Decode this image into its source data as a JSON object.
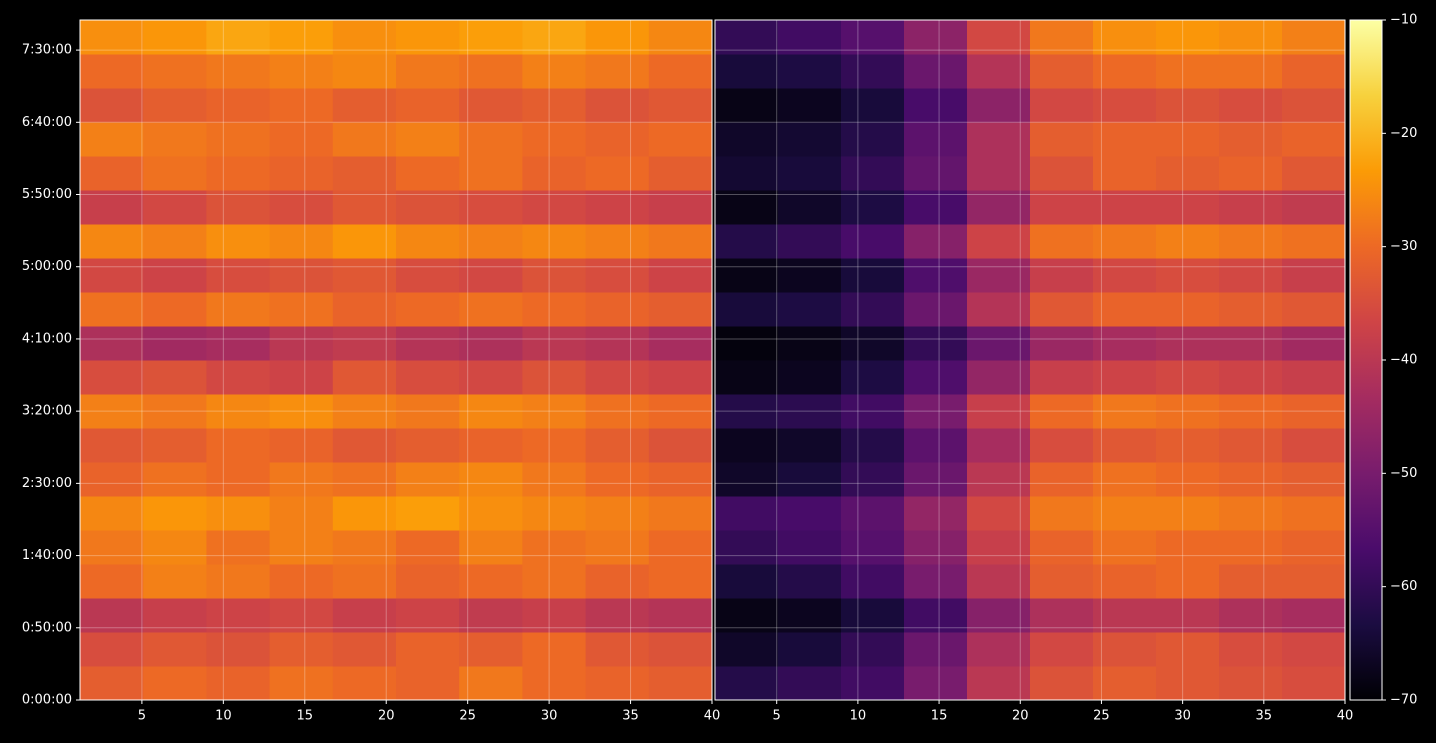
{
  "chart_data": {
    "type": "heatmap",
    "colormap": "inferno",
    "grid": true,
    "ylim": [
      0,
      28250
    ],
    "yticks": [
      {
        "value": 0,
        "label": "0:00:00"
      },
      {
        "value": 3000,
        "label": "0:50:00"
      },
      {
        "value": 6000,
        "label": "1:40:00"
      },
      {
        "value": 9000,
        "label": "2:30:00"
      },
      {
        "value": 12000,
        "label": "3:20:00"
      },
      {
        "value": 15000,
        "label": "4:10:00"
      },
      {
        "value": 18000,
        "label": "5:00:00"
      },
      {
        "value": 21000,
        "label": "5:50:00"
      },
      {
        "value": 24000,
        "label": "6:40:00"
      },
      {
        "value": 27000,
        "label": "7:30:00"
      }
    ],
    "zlim": [
      -70,
      -10
    ],
    "zticks": [
      {
        "value": -70,
        "label": "−70"
      },
      {
        "value": -60,
        "label": "−60"
      },
      {
        "value": -50,
        "label": "−50"
      },
      {
        "value": -40,
        "label": "−40"
      },
      {
        "value": -30,
        "label": "−30"
      },
      {
        "value": -20,
        "label": "−20"
      },
      {
        "value": -10,
        "label": "−10"
      }
    ],
    "panels": [
      {
        "xlim": [
          1.2,
          40
        ],
        "xticks": [
          5,
          10,
          15,
          20,
          25,
          30,
          35,
          40
        ],
        "values": [
          [
            -32,
            -30,
            -31,
            -29,
            -30,
            -31,
            -28,
            -30,
            -31,
            -32
          ],
          [
            -35,
            -33,
            -34,
            -32,
            -33,
            -31,
            -32,
            -30,
            -33,
            -34
          ],
          [
            -40,
            -38,
            -37,
            -36,
            -38,
            -37,
            -39,
            -38,
            -40,
            -41
          ],
          [
            -30,
            -27,
            -28,
            -30,
            -29,
            -31,
            -30,
            -29,
            -31,
            -30
          ],
          [
            -28,
            -26,
            -29,
            -27,
            -28,
            -30,
            -27,
            -29,
            -28,
            -30
          ],
          [
            -26,
            -24,
            -25,
            -27,
            -24,
            -23,
            -25,
            -26,
            -27,
            -28
          ],
          [
            -31,
            -29,
            -30,
            -28,
            -29,
            -27,
            -26,
            -28,
            -30,
            -31
          ],
          [
            -33,
            -32,
            -30,
            -31,
            -33,
            -32,
            -31,
            -30,
            -32,
            -34
          ],
          [
            -27,
            -28,
            -26,
            -25,
            -27,
            -28,
            -26,
            -27,
            -29,
            -30
          ],
          [
            -35,
            -34,
            -36,
            -37,
            -33,
            -35,
            -36,
            -34,
            -36,
            -37
          ],
          [
            -42,
            -44,
            -43,
            -40,
            -39,
            -41,
            -42,
            -40,
            -41,
            -43
          ],
          [
            -29,
            -30,
            -28,
            -29,
            -31,
            -30,
            -29,
            -30,
            -31,
            -32
          ],
          [
            -36,
            -37,
            -35,
            -34,
            -33,
            -35,
            -36,
            -34,
            -35,
            -37
          ],
          [
            -26,
            -27,
            -25,
            -26,
            -24,
            -26,
            -27,
            -26,
            -27,
            -28
          ],
          [
            -38,
            -36,
            -34,
            -35,
            -33,
            -34,
            -35,
            -36,
            -37,
            -38
          ],
          [
            -31,
            -29,
            -30,
            -31,
            -32,
            -30,
            -29,
            -31,
            -30,
            -32
          ],
          [
            -27,
            -28,
            -29,
            -30,
            -28,
            -27,
            -29,
            -30,
            -31,
            -30
          ],
          [
            -34,
            -32,
            -31,
            -30,
            -32,
            -31,
            -33,
            -32,
            -34,
            -33
          ],
          [
            -30,
            -29,
            -28,
            -27,
            -26,
            -28,
            -29,
            -27,
            -28,
            -30
          ],
          [
            -25,
            -24,
            -22,
            -23,
            -25,
            -24,
            -23,
            -22,
            -24,
            -26
          ]
        ]
      },
      {
        "xlim": [
          1.2,
          40
        ],
        "xticks": [
          5,
          10,
          15,
          20,
          25,
          30,
          35,
          40
        ],
        "values": [
          [
            -62,
            -60,
            -58,
            -50,
            -40,
            -34,
            -32,
            -33,
            -34,
            -35
          ],
          [
            -66,
            -64,
            -60,
            -52,
            -42,
            -36,
            -34,
            -33,
            -35,
            -36
          ],
          [
            -68,
            -67,
            -64,
            -58,
            -48,
            -42,
            -40,
            -40,
            -42,
            -43
          ],
          [
            -64,
            -62,
            -58,
            -50,
            -40,
            -32,
            -31,
            -30,
            -32,
            -32
          ],
          [
            -60,
            -58,
            -55,
            -48,
            -38,
            -31,
            -29,
            -30,
            -30,
            -31
          ],
          [
            -58,
            -57,
            -54,
            -46,
            -36,
            -28,
            -27,
            -27,
            -28,
            -29
          ],
          [
            -66,
            -64,
            -60,
            -52,
            -40,
            -31,
            -29,
            -30,
            -31,
            -32
          ],
          [
            -67,
            -66,
            -62,
            -54,
            -43,
            -35,
            -33,
            -32,
            -33,
            -35
          ],
          [
            -62,
            -61,
            -58,
            -50,
            -38,
            -30,
            -28,
            -29,
            -30,
            -31
          ],
          [
            -68,
            -67,
            -63,
            -56,
            -46,
            -38,
            -37,
            -36,
            -37,
            -38
          ],
          [
            -69,
            -68,
            -66,
            -60,
            -52,
            -45,
            -43,
            -42,
            -42,
            -44
          ],
          [
            -64,
            -63,
            -60,
            -52,
            -41,
            -33,
            -31,
            -31,
            -32,
            -33
          ],
          [
            -68,
            -67,
            -64,
            -56,
            -45,
            -38,
            -36,
            -35,
            -36,
            -38
          ],
          [
            -62,
            -60,
            -57,
            -48,
            -37,
            -29,
            -28,
            -27,
            -28,
            -29
          ],
          [
            -68,
            -66,
            -63,
            -57,
            -46,
            -37,
            -37,
            -37,
            -38,
            -39
          ],
          [
            -65,
            -64,
            -60,
            -53,
            -42,
            -34,
            -31,
            -32,
            -31,
            -33
          ],
          [
            -66,
            -65,
            -62,
            -54,
            -42,
            -32,
            -31,
            -31,
            -32,
            -31
          ],
          [
            -68,
            -67,
            -64,
            -57,
            -47,
            -36,
            -35,
            -34,
            -35,
            -34
          ],
          [
            -64,
            -63,
            -60,
            -52,
            -41,
            -32,
            -30,
            -29,
            -29,
            -31
          ],
          [
            -60,
            -58,
            -55,
            -47,
            -36,
            -28,
            -25,
            -24,
            -25,
            -27
          ]
        ]
      }
    ]
  }
}
